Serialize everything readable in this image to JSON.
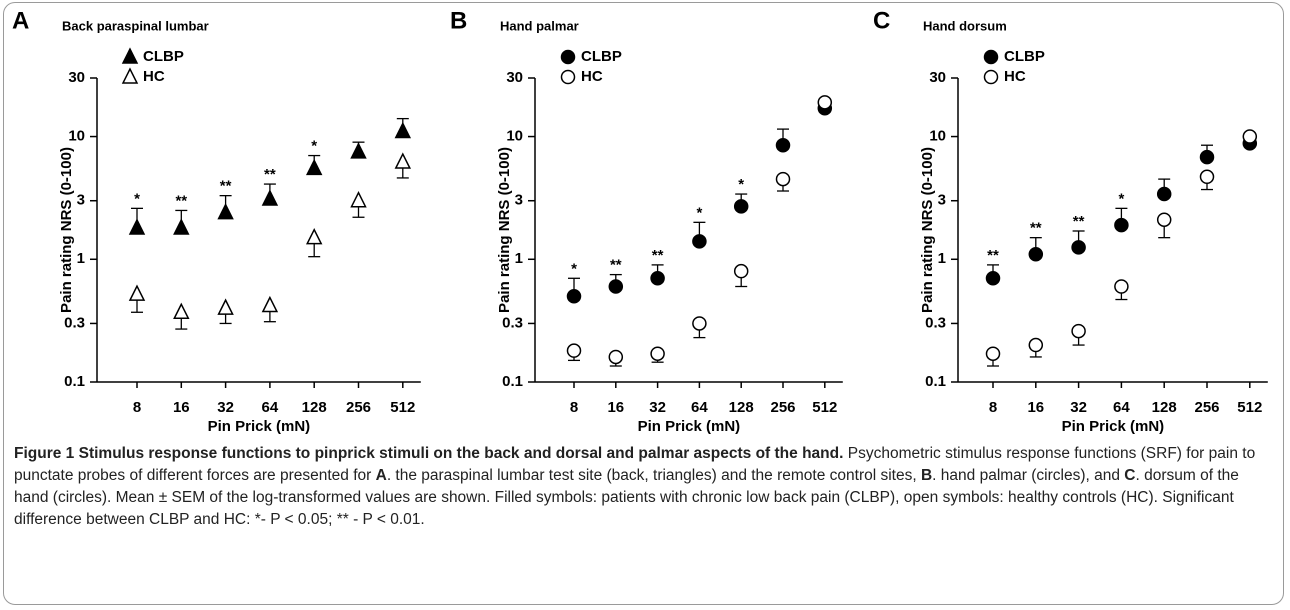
{
  "chart_data": [
    {
      "type": "scatter",
      "panel": "A",
      "title": "Back paraspinal lumbar",
      "xlabel": "Pin Prick (mN)",
      "ylabel": "Pain rating NRS (0-100)",
      "categories": [
        "8",
        "16",
        "32",
        "64",
        "128",
        "256",
        "512"
      ],
      "yscale": "log",
      "ylim": [
        0.1,
        30
      ],
      "yticks": [
        0.1,
        0.3,
        1,
        3,
        10,
        30
      ],
      "series": [
        {
          "name": "CLBP",
          "color": "#000000",
          "marker": "triangle",
          "filled": true,
          "error_direction": "up",
          "values": [
            1.8,
            1.8,
            2.4,
            3.1,
            5.5,
            7.5,
            11
          ],
          "errors": [
            0.8,
            0.7,
            0.9,
            1.0,
            1.5,
            1.5,
            3
          ]
        },
        {
          "name": "HC",
          "color": "#000000",
          "marker": "triangle",
          "filled": false,
          "error_direction": "down",
          "values": [
            0.52,
            0.37,
            0.4,
            0.42,
            1.5,
            3.0,
            6.2
          ],
          "errors": [
            0.15,
            0.1,
            0.1,
            0.11,
            0.45,
            0.8,
            1.6
          ]
        }
      ],
      "annotations": [
        "*",
        "**",
        "**",
        "**",
        "*",
        null,
        null
      ],
      "legend": "top-left"
    },
    {
      "type": "scatter",
      "panel": "B",
      "title": "Hand palmar",
      "xlabel": "Pin Prick (mN)",
      "ylabel": "Pain rating NRS (0-100)",
      "categories": [
        "8",
        "16",
        "32",
        "64",
        "128",
        "256",
        "512"
      ],
      "yscale": "log",
      "ylim": [
        0.1,
        30
      ],
      "yticks": [
        0.1,
        0.3,
        1,
        3,
        10,
        30
      ],
      "series": [
        {
          "name": "CLBP",
          "color": "#000000",
          "marker": "circle",
          "filled": true,
          "error_direction": "up",
          "values": [
            0.5,
            0.6,
            0.7,
            1.4,
            2.7,
            8.5,
            17
          ],
          "errors": [
            0.2,
            0.15,
            0.2,
            0.6,
            0.7,
            3,
            2
          ]
        },
        {
          "name": "HC",
          "color": "#000000",
          "marker": "circle",
          "filled": false,
          "error_direction": "down",
          "values": [
            0.18,
            0.16,
            0.17,
            0.3,
            0.8,
            4.5,
            19
          ],
          "errors": [
            0.03,
            0.025,
            0.025,
            0.07,
            0.2,
            0.9,
            3
          ]
        }
      ],
      "annotations": [
        "*",
        "**",
        "**",
        "*",
        "*",
        null,
        null
      ],
      "legend": "top-left"
    },
    {
      "type": "scatter",
      "panel": "C",
      "title": "Hand dorsum",
      "xlabel": "Pin Prick (mN)",
      "ylabel": "Pain rating NRS (0-100)",
      "categories": [
        "8",
        "16",
        "32",
        "64",
        "128",
        "256",
        "512"
      ],
      "yscale": "log",
      "ylim": [
        0.1,
        30
      ],
      "yticks": [
        0.1,
        0.3,
        1,
        3,
        10,
        30
      ],
      "series": [
        {
          "name": "CLBP",
          "color": "#000000",
          "marker": "circle",
          "filled": true,
          "error_direction": "up",
          "values": [
            0.7,
            1.1,
            1.25,
            1.9,
            3.4,
            6.8,
            8.8
          ],
          "errors": [
            0.2,
            0.4,
            0.45,
            0.7,
            1.1,
            1.7,
            0.6
          ]
        },
        {
          "name": "HC",
          "color": "#000000",
          "marker": "circle",
          "filled": false,
          "error_direction": "down",
          "values": [
            0.17,
            0.2,
            0.26,
            0.6,
            2.1,
            4.7,
            10
          ],
          "errors": [
            0.035,
            0.04,
            0.06,
            0.13,
            0.6,
            1,
            1
          ]
        }
      ],
      "annotations": [
        "**",
        "**",
        "**",
        "*",
        null,
        null,
        null
      ],
      "legend": "top-left"
    }
  ],
  "caption": {
    "label": "Figure 1",
    "title": "Stimulus response functions to pinprick stimuli on the back and dorsal and palmar aspects of the hand.",
    "body": [
      {
        "text": "Psychometric stimulus response functions (SRF) for pain to punctate probes of different forces are presented for ",
        "bold": false
      },
      {
        "text": "A",
        "bold": true
      },
      {
        "text": ". the paraspinal lumbar test site (back, triangles) and the remote control sites, ",
        "bold": false
      },
      {
        "text": "B",
        "bold": true
      },
      {
        "text": ". hand palmar (circles), and ",
        "bold": false
      },
      {
        "text": "C",
        "bold": true
      },
      {
        "text": ". dorsum of the hand (circles). Mean ± SEM of the log-transformed values are shown. Filled symbols: patients with chronic low back pain (CLBP), open symbols: healthy controls (HC). Significant difference between CLBP and HC: *- P < 0.05; ** - P < 0.01.",
        "bold": false
      }
    ]
  }
}
